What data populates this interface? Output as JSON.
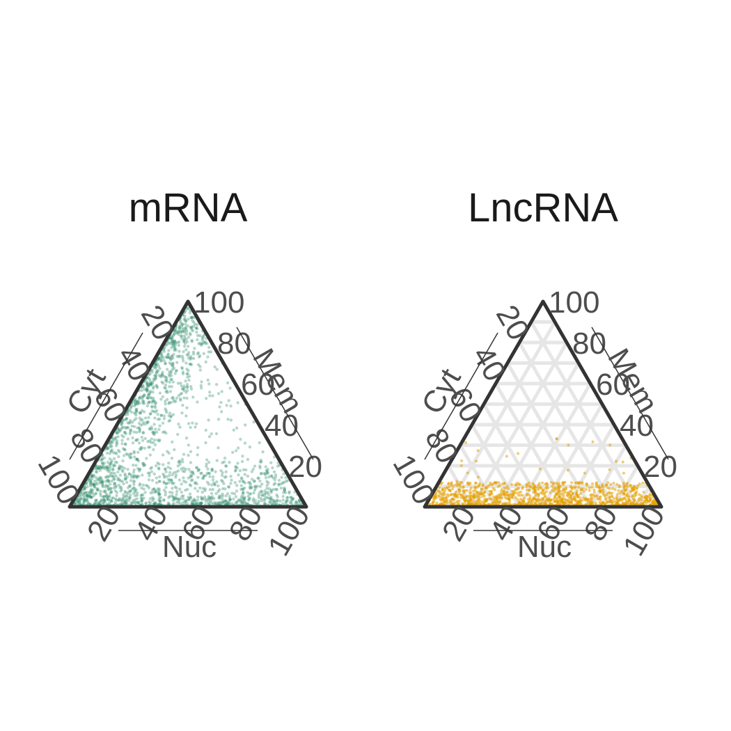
{
  "chart_data": [
    {
      "type": "scatter",
      "subtype": "ternary",
      "title": "mRNA",
      "color": "#2E8B6A",
      "axes": {
        "a": "Cyt",
        "b": "Mem",
        "c": "Nuc"
      },
      "range": [
        0,
        100
      ],
      "ticks": [
        "20",
        "40",
        "60",
        "80",
        "100"
      ],
      "grid": true,
      "density_note_values": {
        "mem_max": 100,
        "dense_mem_below": 20
      }
    },
    {
      "type": "scatter",
      "subtype": "ternary",
      "title": "LncRNA",
      "color": "#E5A000",
      "axes": {
        "a": "Cyt",
        "b": "Mem",
        "c": "Nuc"
      },
      "range": [
        0,
        100
      ],
      "ticks": [
        "20",
        "40",
        "60",
        "80",
        "100"
      ],
      "grid": true,
      "density_note_values": {
        "mem_max": 12
      }
    }
  ]
}
